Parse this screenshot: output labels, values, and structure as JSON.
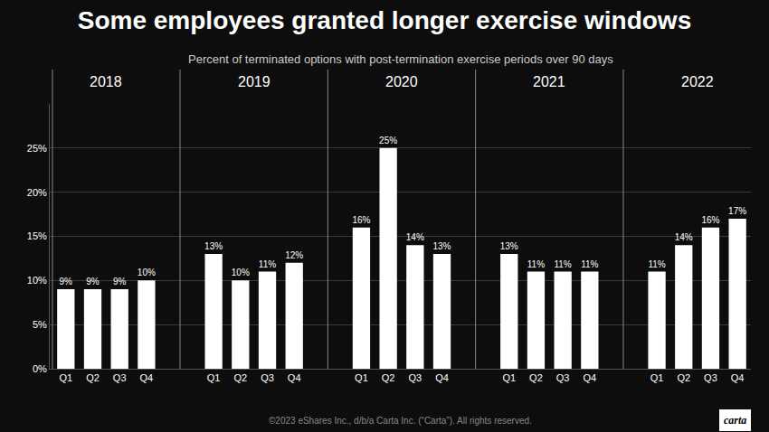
{
  "chart_data": {
    "type": "bar",
    "title": "Some employees granted longer exercise windows",
    "subtitle": "Percent of terminated options with post-termination exercise periods over 90 days",
    "categories": [
      "Q1",
      "Q2",
      "Q3",
      "Q4",
      "Q1",
      "Q2",
      "Q3",
      "Q4",
      "Q1",
      "Q2",
      "Q3",
      "Q4",
      "Q1",
      "Q2",
      "Q3",
      "Q4",
      "Q1",
      "Q2",
      "Q3",
      "Q4"
    ],
    "groups": [
      "2018",
      "2019",
      "2020",
      "2021",
      "2022"
    ],
    "values": [
      9,
      9,
      9,
      10,
      13,
      10,
      11,
      12,
      16,
      25,
      14,
      13,
      13,
      11,
      11,
      11,
      11,
      14,
      16,
      17
    ],
    "value_labels": [
      "9%",
      "9%",
      "9%",
      "10%",
      "13%",
      "10%",
      "11%",
      "12%",
      "16%",
      "25%",
      "14%",
      "13%",
      "13%",
      "11%",
      "11%",
      "11%",
      "11%",
      "14%",
      "16%",
      "17%"
    ],
    "data_labels": true,
    "color": "#ffffff",
    "ylim": [
      0,
      30
    ],
    "yticks": [
      {
        "value": 0,
        "label": "0%"
      },
      {
        "value": 5,
        "label": "5%"
      },
      {
        "value": 10,
        "label": "10%"
      },
      {
        "value": 15,
        "label": "15%"
      },
      {
        "value": 20,
        "label": "20%"
      },
      {
        "value": 25,
        "label": "25%"
      }
    ],
    "grid": true,
    "annotations": [
      "©2023 eShares Inc., d/b/a Carta Inc. (“Carta”). All rights reserved.",
      "carta"
    ]
  }
}
